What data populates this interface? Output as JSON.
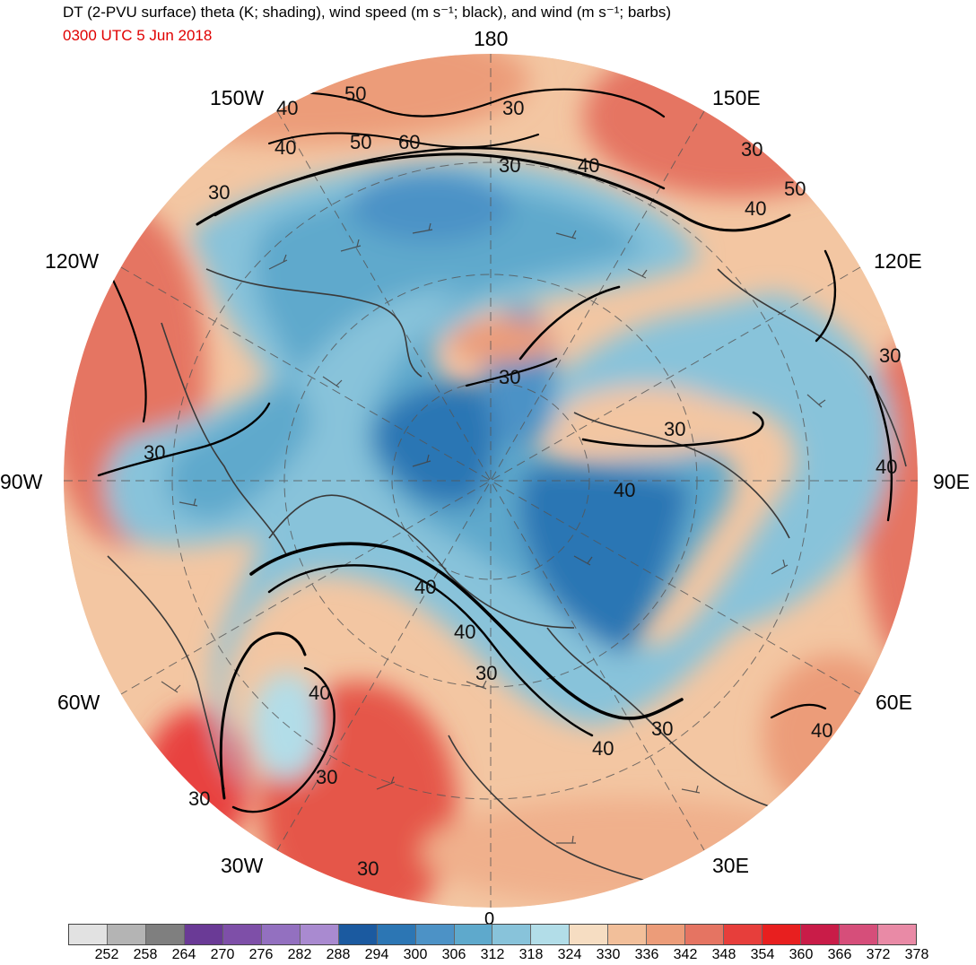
{
  "title": "DT (2-PVU surface) theta (K; shading), wind speed (m s⁻¹; black), and wind (m s⁻¹; barbs)",
  "valid_time": "0300 UTC 5 Jun 2018",
  "longitude_labels": [
    "180",
    "150E",
    "120E",
    "90E",
    "60E",
    "30E",
    "0",
    "30W",
    "60W",
    "90W",
    "120W",
    "150W"
  ],
  "contour_labels": [
    "30",
    "40",
    "50",
    "60"
  ],
  "colorbar": {
    "ticks": [
      "252",
      "258",
      "264",
      "270",
      "276",
      "282",
      "288",
      "294",
      "300",
      "306",
      "312",
      "318",
      "324",
      "330",
      "336",
      "342",
      "348",
      "354",
      "360",
      "366",
      "372",
      "378"
    ],
    "colors": [
      "#e2e2e2",
      "#b4b4b4",
      "#7f7f7f",
      "#6a3a96",
      "#7e4fa8",
      "#9370c0",
      "#a98ad0",
      "#1b5aa0",
      "#2c76b4",
      "#4c92c6",
      "#5ea9cc",
      "#88c3da",
      "#b2dde8",
      "#f6ddc2",
      "#f2bf9a",
      "#ec9c79",
      "#e57462",
      "#e73e3b",
      "#e81f1f",
      "#c91c48",
      "#d64e7a",
      "#e98aa6"
    ]
  }
}
